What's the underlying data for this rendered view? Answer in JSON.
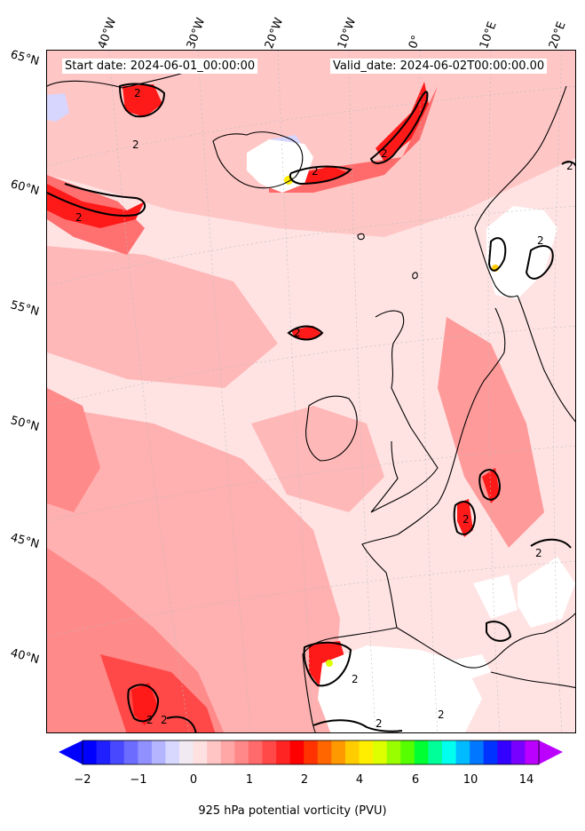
{
  "header": {
    "start_date": "Start date: 2024-06-01_00:00:00",
    "valid_date": "Valid_date: 2024-06-02T00:00:00.00"
  },
  "longitude_labels": [
    "40°W",
    "30°W",
    "20°W",
    "10°W",
    "0°",
    "10°E",
    "20°E"
  ],
  "latitude_labels": [
    "65°N",
    "60°N",
    "55°N",
    "50°N",
    "45°N",
    "40°N"
  ],
  "contour_label": "2",
  "colorbar": {
    "ticks": [
      "−2",
      "−1",
      "0",
      "1",
      "2",
      "4",
      "6",
      "10",
      "14"
    ],
    "label": "925 hPa potential vorticity (PVU)",
    "colors": [
      "#0000ff",
      "#2020ff",
      "#4848ff",
      "#6c6cff",
      "#9090ff",
      "#b4b4ff",
      "#d8d8ff",
      "#f2eaf2",
      "#ffe0e0",
      "#ffc4c4",
      "#ffa6a6",
      "#ff8888",
      "#ff6a6a",
      "#ff4848",
      "#ff2424",
      "#ff0000",
      "#ff3300",
      "#ff6600",
      "#ff9900",
      "#ffcc00",
      "#ffee00",
      "#ddff00",
      "#99ff00",
      "#55ff00",
      "#00ff33",
      "#00ff99",
      "#00ffee",
      "#00bbff",
      "#0077ff",
      "#0033ff",
      "#3300ff",
      "#7700ff",
      "#bb00ff"
    ],
    "under_color": "#0000ff",
    "over_color": "#bb00ff"
  },
  "palette": {
    "sea": "#ffe3e3",
    "light": "#ffc6c6",
    "medium": "#ff9a9a",
    "strong": "#ff5a5a",
    "intense": "#ff1a1a",
    "neg": "#d6d6ff",
    "high": "#ffee00",
    "terrain_gap": "#ffffff"
  }
}
